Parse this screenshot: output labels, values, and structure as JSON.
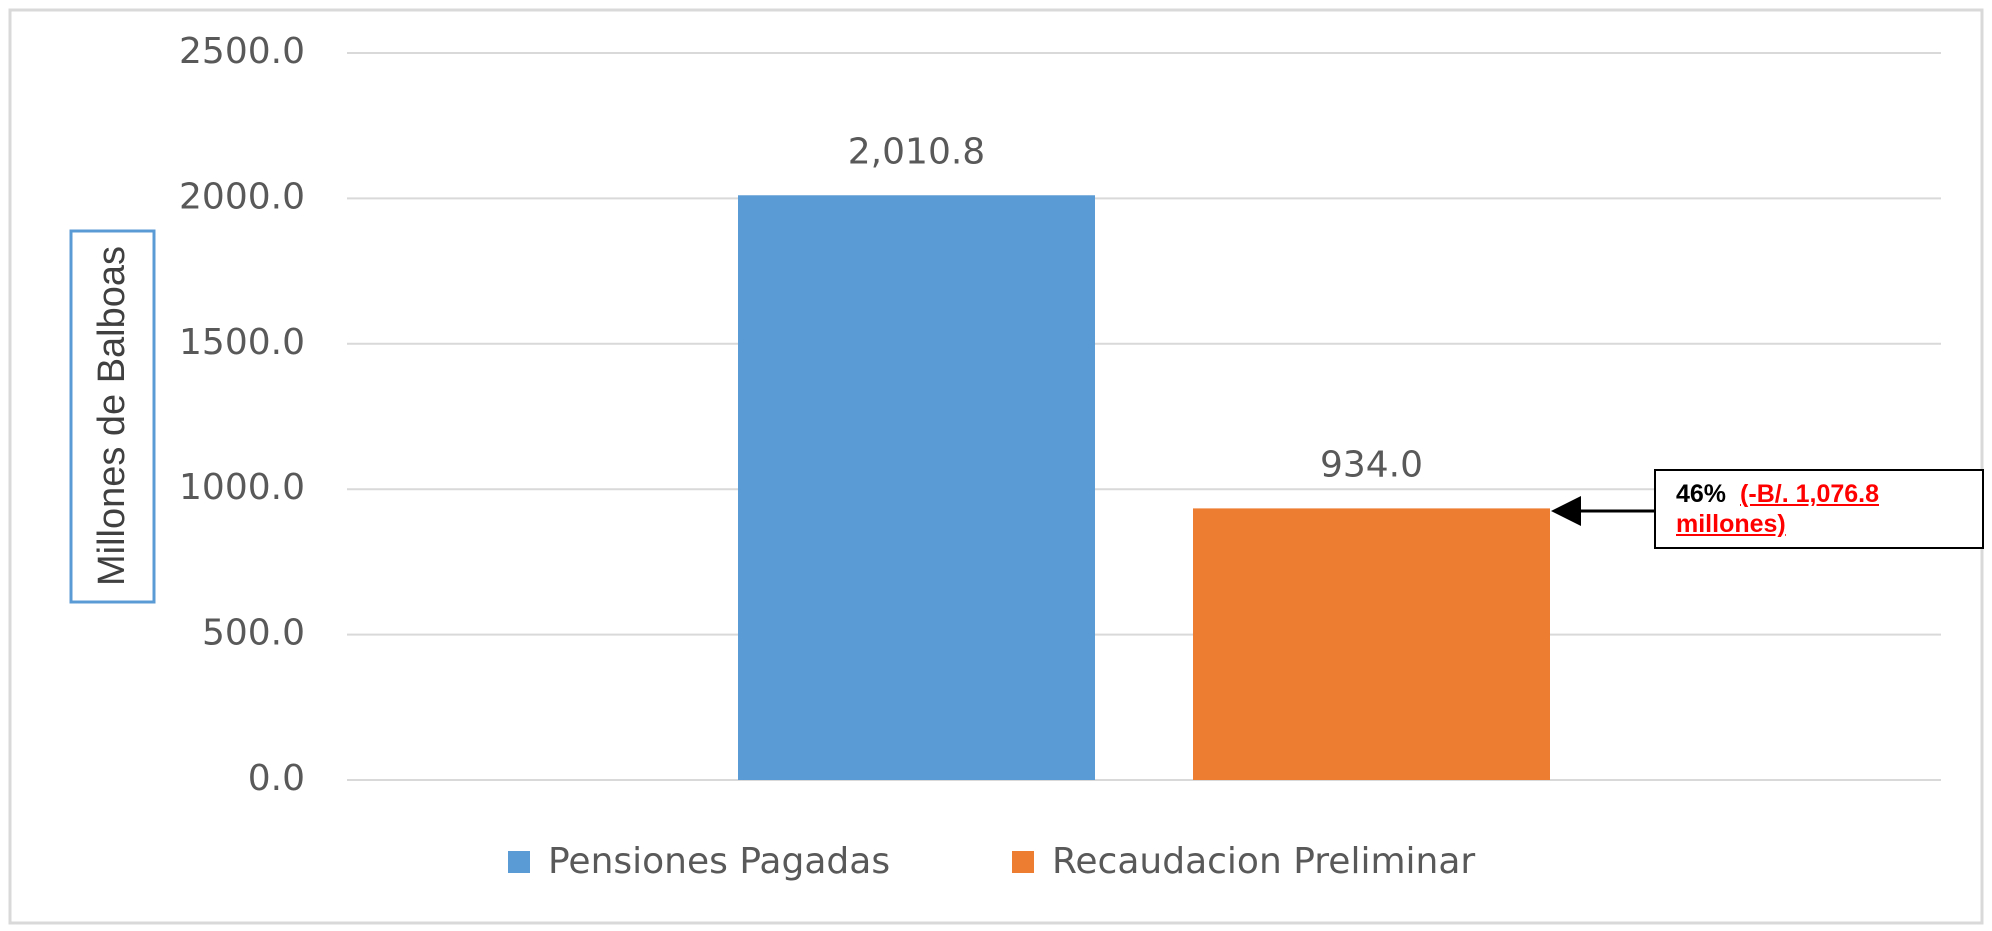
{
  "chart_data": {
    "type": "bar",
    "categories": [
      null
    ],
    "series": [
      {
        "name": "Pensiones Pagadas",
        "color": "#5b9bd5",
        "values": [
          2010.8
        ],
        "value_labels": [
          "2,010.8"
        ]
      },
      {
        "name": "Recaudacion Preliminar",
        "color": "#ed7d31",
        "values": [
          934.0
        ],
        "value_labels": [
          "934.0"
        ]
      }
    ],
    "y_label": "Millones de Balboas",
    "ylim": [
      0,
      2500
    ],
    "yticks": [
      {
        "value": 0,
        "label": "0.0"
      },
      {
        "value": 500,
        "label": "500.0"
      },
      {
        "value": 1000,
        "label": "1000.0"
      },
      {
        "value": 1500,
        "label": "1500.0"
      },
      {
        "value": 2000,
        "label": "2000.0"
      },
      {
        "value": 2500,
        "label": "2500.0"
      }
    ],
    "grid": true,
    "legend": "bottom",
    "annotation": {
      "percent": "46%",
      "text": "(-B/. 1,076.8 millones)"
    }
  }
}
